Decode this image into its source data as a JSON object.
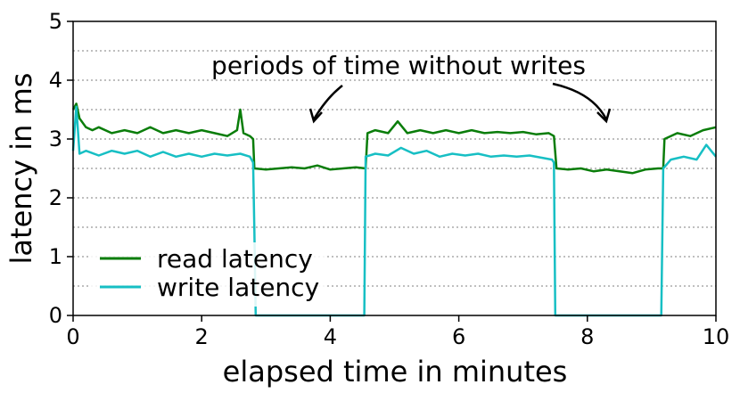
{
  "chart_data": {
    "type": "line",
    "xlabel": "elapsed time in minutes",
    "ylabel": "latency in ms",
    "xlim": [
      0,
      10
    ],
    "ylim": [
      0,
      5
    ],
    "xticks": [
      0,
      2,
      4,
      6,
      8,
      10
    ],
    "yticks": [
      0,
      1,
      2,
      3,
      4,
      5
    ],
    "grid": "horizontal dotted at 0.5 ms intervals",
    "legend": {
      "placement": "bottom-left"
    },
    "annotation": {
      "text": "periods of time without writes"
    },
    "series": [
      {
        "name": "read latency",
        "color": "#0a7d0a",
        "points": [
          [
            0.0,
            3.5
          ],
          [
            0.05,
            3.6
          ],
          [
            0.1,
            3.35
          ],
          [
            0.2,
            3.2
          ],
          [
            0.3,
            3.15
          ],
          [
            0.4,
            3.2
          ],
          [
            0.6,
            3.1
          ],
          [
            0.8,
            3.15
          ],
          [
            1.0,
            3.1
          ],
          [
            1.2,
            3.2
          ],
          [
            1.4,
            3.1
          ],
          [
            1.6,
            3.15
          ],
          [
            1.8,
            3.1
          ],
          [
            2.0,
            3.15
          ],
          [
            2.2,
            3.1
          ],
          [
            2.4,
            3.05
          ],
          [
            2.55,
            3.15
          ],
          [
            2.6,
            3.5
          ],
          [
            2.65,
            3.1
          ],
          [
            2.75,
            3.05
          ],
          [
            2.8,
            3.0
          ],
          [
            2.82,
            2.5
          ],
          [
            3.0,
            2.48
          ],
          [
            3.2,
            2.5
          ],
          [
            3.4,
            2.52
          ],
          [
            3.6,
            2.5
          ],
          [
            3.8,
            2.55
          ],
          [
            4.0,
            2.48
          ],
          [
            4.2,
            2.5
          ],
          [
            4.4,
            2.52
          ],
          [
            4.55,
            2.5
          ],
          [
            4.58,
            3.1
          ],
          [
            4.7,
            3.15
          ],
          [
            4.9,
            3.1
          ],
          [
            5.05,
            3.3
          ],
          [
            5.2,
            3.1
          ],
          [
            5.4,
            3.15
          ],
          [
            5.6,
            3.1
          ],
          [
            5.8,
            3.15
          ],
          [
            6.0,
            3.1
          ],
          [
            6.2,
            3.15
          ],
          [
            6.4,
            3.1
          ],
          [
            6.6,
            3.12
          ],
          [
            6.8,
            3.1
          ],
          [
            7.0,
            3.12
          ],
          [
            7.2,
            3.08
          ],
          [
            7.4,
            3.1
          ],
          [
            7.48,
            3.05
          ],
          [
            7.52,
            2.5
          ],
          [
            7.7,
            2.48
          ],
          [
            7.9,
            2.5
          ],
          [
            8.1,
            2.45
          ],
          [
            8.3,
            2.48
          ],
          [
            8.5,
            2.45
          ],
          [
            8.7,
            2.42
          ],
          [
            8.9,
            2.48
          ],
          [
            9.1,
            2.5
          ],
          [
            9.18,
            2.5
          ],
          [
            9.2,
            3.0
          ],
          [
            9.4,
            3.1
          ],
          [
            9.6,
            3.05
          ],
          [
            9.8,
            3.15
          ],
          [
            10.0,
            3.2
          ]
        ]
      },
      {
        "name": "write latency",
        "color": "#17bfc4",
        "points": [
          [
            0.0,
            2.8
          ],
          [
            0.05,
            3.55
          ],
          [
            0.1,
            2.75
          ],
          [
            0.2,
            2.8
          ],
          [
            0.4,
            2.72
          ],
          [
            0.6,
            2.8
          ],
          [
            0.8,
            2.75
          ],
          [
            1.0,
            2.8
          ],
          [
            1.2,
            2.7
          ],
          [
            1.4,
            2.78
          ],
          [
            1.6,
            2.7
          ],
          [
            1.8,
            2.75
          ],
          [
            2.0,
            2.7
          ],
          [
            2.2,
            2.75
          ],
          [
            2.4,
            2.72
          ],
          [
            2.6,
            2.75
          ],
          [
            2.75,
            2.7
          ],
          [
            2.8,
            2.6
          ],
          [
            2.82,
            1.45
          ],
          [
            2.84,
            0.0
          ],
          [
            4.53,
            0.0
          ],
          [
            4.55,
            2.7
          ],
          [
            4.7,
            2.75
          ],
          [
            4.9,
            2.72
          ],
          [
            5.1,
            2.85
          ],
          [
            5.3,
            2.75
          ],
          [
            5.5,
            2.8
          ],
          [
            5.7,
            2.7
          ],
          [
            5.9,
            2.75
          ],
          [
            6.1,
            2.72
          ],
          [
            6.3,
            2.75
          ],
          [
            6.5,
            2.7
          ],
          [
            6.7,
            2.72
          ],
          [
            6.9,
            2.7
          ],
          [
            7.1,
            2.72
          ],
          [
            7.3,
            2.68
          ],
          [
            7.45,
            2.65
          ],
          [
            7.48,
            2.6
          ],
          [
            7.5,
            0.0
          ],
          [
            9.15,
            0.0
          ],
          [
            9.18,
            2.5
          ],
          [
            9.3,
            2.65
          ],
          [
            9.5,
            2.7
          ],
          [
            9.7,
            2.65
          ],
          [
            9.85,
            2.9
          ],
          [
            10.0,
            2.7
          ]
        ]
      }
    ]
  }
}
